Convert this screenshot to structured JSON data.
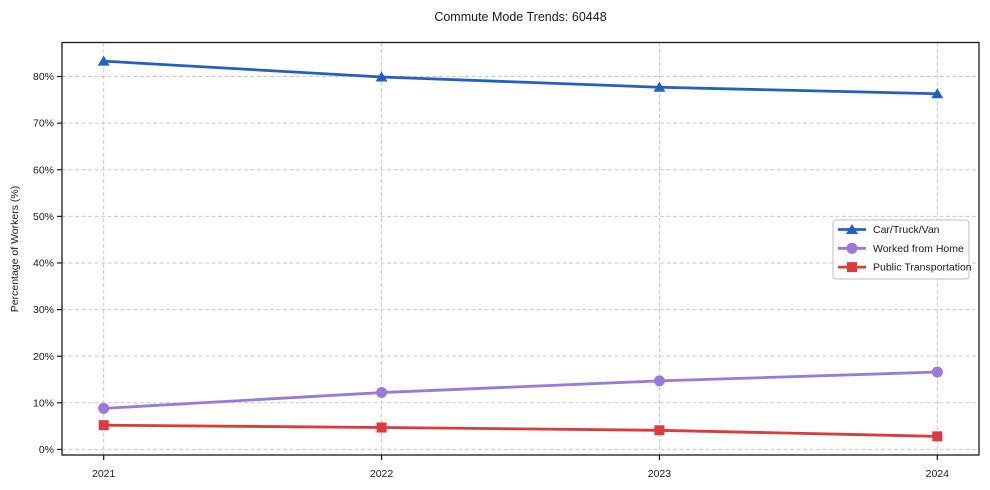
{
  "figure": {
    "title": "Commute Mode Trends: 60448",
    "ylabel": "Percentage of Workers (%)"
  },
  "chart_data": {
    "type": "line",
    "title": "Commute Mode Trends: 60448",
    "xlabel": "",
    "ylabel": "Percentage of Workers (%)",
    "categories": [
      "2021",
      "2022",
      "2023",
      "2024"
    ],
    "series": [
      {
        "name": "Car/Truck/Van",
        "marker": "triangle",
        "color": "#2360c2",
        "values": [
          83.3,
          79.9,
          77.7,
          76.3
        ]
      },
      {
        "name": "Worked from Home",
        "marker": "circle",
        "color": "#9b79d8",
        "values": [
          8.8,
          12.2,
          14.7,
          16.6
        ]
      },
      {
        "name": "Public Transportation",
        "marker": "square",
        "color": "#dc3a3d",
        "values": [
          5.2,
          4.7,
          4.1,
          2.8
        ]
      }
    ],
    "yticks": [
      0,
      10,
      20,
      30,
      40,
      50,
      60,
      70,
      80
    ],
    "ytick_suffix": "%",
    "ylim": [
      -1.2,
      87.3
    ],
    "xlim": [
      -0.15,
      3.15
    ],
    "grid": {
      "on": true,
      "style": "dashed",
      "color": "#c9c9c9"
    },
    "legend": {
      "position": "center-right",
      "border_color": "#bfbfbf",
      "background": "#ffffff"
    },
    "colors": {
      "spine": "#1a1a1a",
      "tick_text": "#1a1a1a"
    }
  }
}
